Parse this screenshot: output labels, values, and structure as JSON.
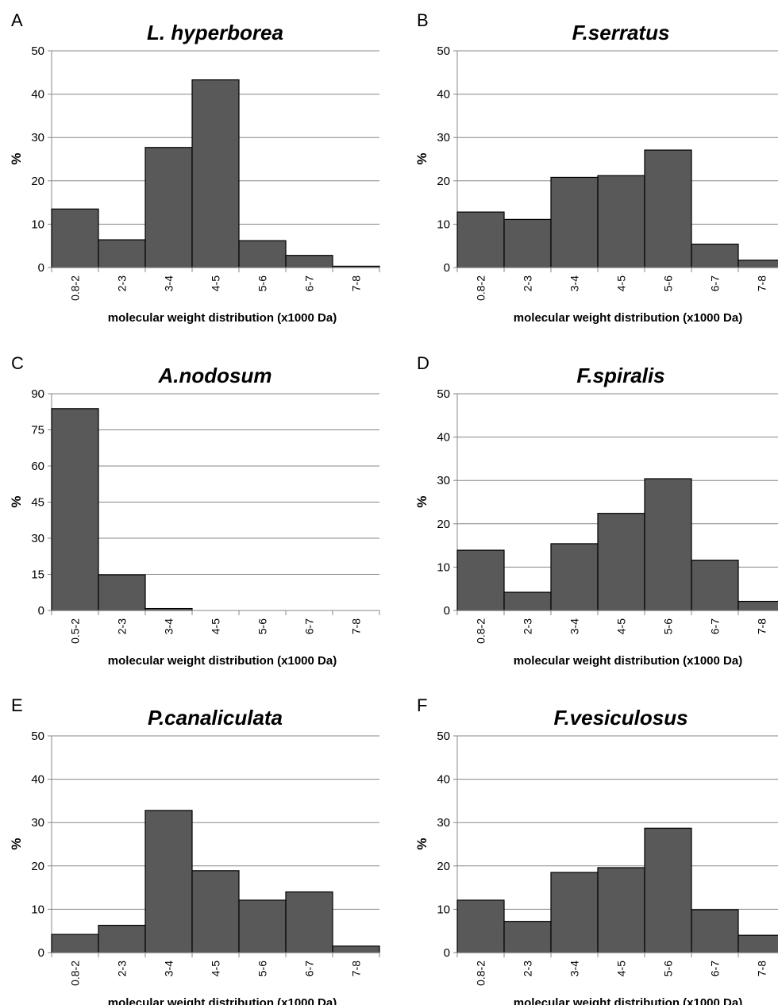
{
  "chart_data": [
    {
      "panel": "A",
      "type": "bar",
      "title": "L. hyperborea",
      "xlabel": "molecular weight distribution (x1000 Da)",
      "ylabel": "%",
      "categories": [
        "0.8-2",
        "2-3",
        "3-4",
        "4-5",
        "5-6",
        "6-7",
        "7-8"
      ],
      "values": [
        13.5,
        6.4,
        27.7,
        43.3,
        6.2,
        2.8,
        0.3
      ],
      "ylim": [
        0,
        50
      ],
      "yticks": [
        0,
        10,
        20,
        30,
        40,
        50
      ],
      "grid": true,
      "bar_color": "#595959"
    },
    {
      "panel": "B",
      "type": "bar",
      "title": "F.serratus",
      "xlabel": "molecular weight distribution (x1000 Da)",
      "ylabel": "%",
      "categories": [
        "0.8-2",
        "2-3",
        "3-4",
        "4-5",
        "5-6",
        "6-7",
        "7-8"
      ],
      "values": [
        12.8,
        11.1,
        20.8,
        21.2,
        27.1,
        5.4,
        1.7
      ],
      "ylim": [
        0,
        50
      ],
      "yticks": [
        0,
        10,
        20,
        30,
        40,
        50
      ],
      "grid": true,
      "bar_color": "#595959"
    },
    {
      "panel": "C",
      "type": "bar",
      "title": "A.nodosum",
      "xlabel": "molecular weight distribution (x1000 Da)",
      "ylabel": "%",
      "categories": [
        "0.5-2",
        "2-3",
        "3-4",
        "4-5",
        "5-6",
        "6-7",
        "7-8"
      ],
      "values": [
        83.8,
        14.8,
        0.8,
        0,
        0,
        0,
        0
      ],
      "ylim": [
        0,
        90
      ],
      "yticks": [
        0,
        15,
        30,
        45,
        60,
        75,
        90
      ],
      "grid": true,
      "bar_color": "#595959"
    },
    {
      "panel": "D",
      "type": "bar",
      "title": "F.spiralis",
      "xlabel": "molecular weight distribution (x1000 Da)",
      "ylabel": "%",
      "categories": [
        "0.8-2",
        "2-3",
        "3-4",
        "4-5",
        "5-6",
        "6-7",
        "7-8"
      ],
      "values": [
        13.9,
        4.2,
        15.4,
        22.4,
        30.4,
        11.6,
        2.1
      ],
      "ylim": [
        0,
        50
      ],
      "yticks": [
        0,
        10,
        20,
        30,
        40,
        50
      ],
      "grid": true,
      "bar_color": "#595959"
    },
    {
      "panel": "E",
      "type": "bar",
      "title": "P.canaliculata",
      "xlabel": "molecular weight distribution (x1000 Da)",
      "ylabel": "%",
      "categories": [
        "0.8-2",
        "2-3",
        "3-4",
        "4-5",
        "5-6",
        "6-7",
        "7-8"
      ],
      "values": [
        4.2,
        6.3,
        32.8,
        18.9,
        12.1,
        14.0,
        1.5
      ],
      "ylim": [
        0,
        50
      ],
      "yticks": [
        0,
        10,
        20,
        30,
        40,
        50
      ],
      "grid": true,
      "bar_color": "#595959"
    },
    {
      "panel": "F",
      "type": "bar",
      "title": "F.vesiculosus",
      "xlabel": "molecular weight distribution (x1000 Da)",
      "ylabel": "%",
      "categories": [
        "0.8-2",
        "2-3",
        "3-4",
        "4-5",
        "5-6",
        "6-7",
        "7-8"
      ],
      "values": [
        12.1,
        7.2,
        18.5,
        19.6,
        28.7,
        9.9,
        4.0
      ],
      "ylim": [
        0,
        50
      ],
      "yticks": [
        0,
        10,
        20,
        30,
        40,
        50
      ],
      "grid": true,
      "bar_color": "#595959"
    }
  ]
}
